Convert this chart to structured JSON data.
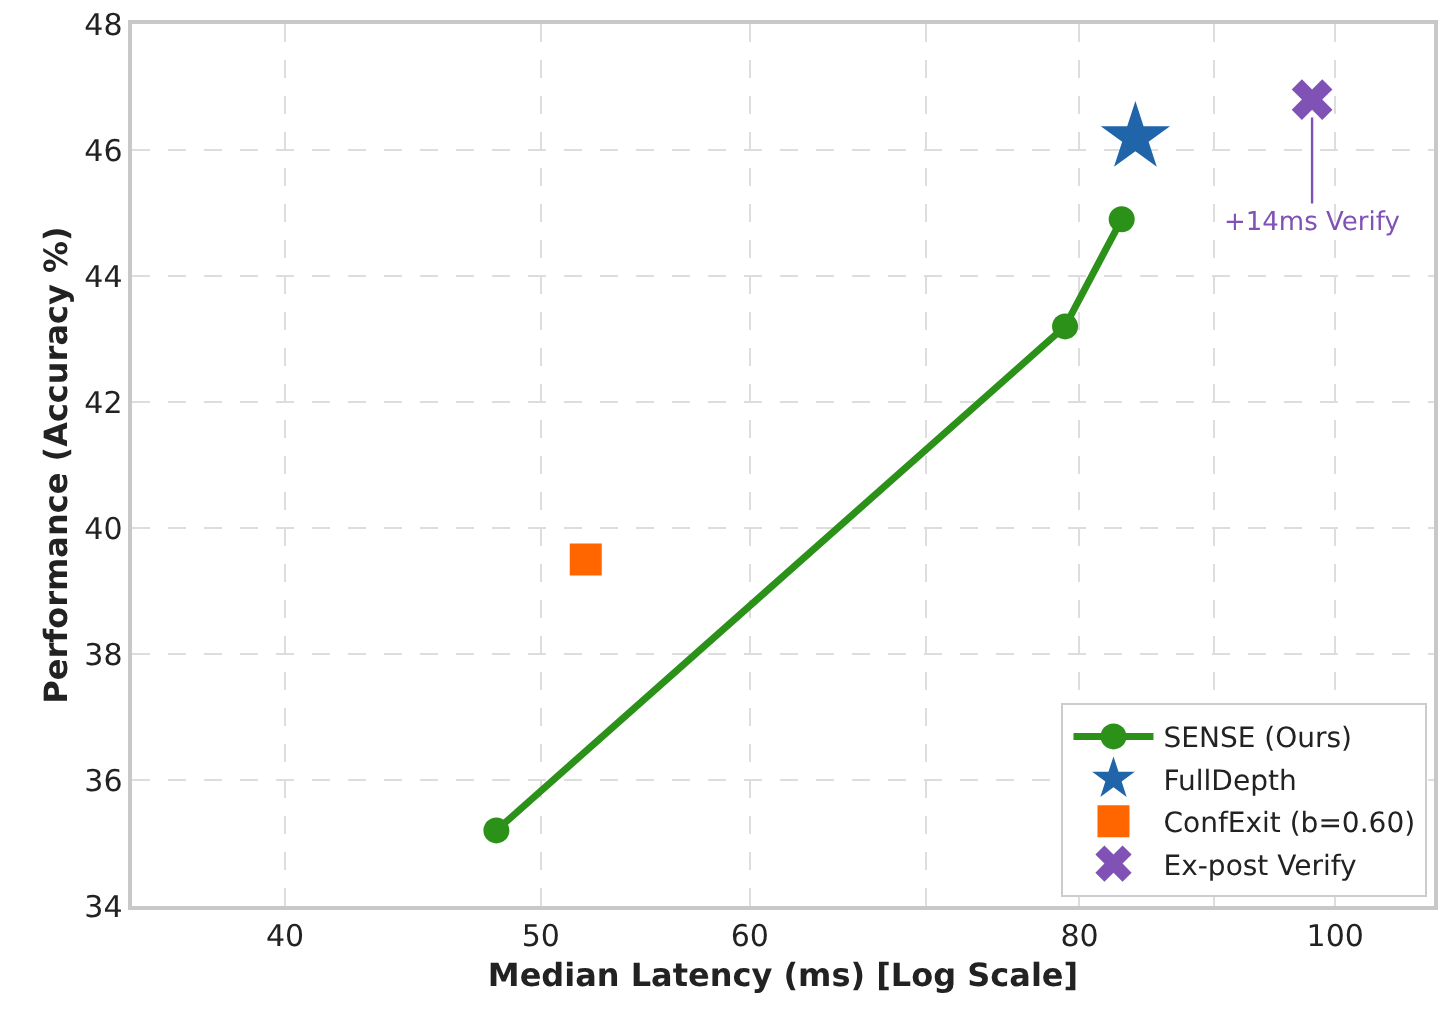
{
  "chart_data": {
    "type": "line",
    "xlabel": "Median Latency (ms) [Log Scale]",
    "ylabel": "Performance (Accuracy %)",
    "log": "x",
    "xlim": [
      35,
      109
    ],
    "xticks": [
      40,
      50,
      60,
      {
        "value": 70,
        "label": null
      },
      80,
      {
        "value": 90,
        "label": null
      },
      100
    ],
    "ylim": [
      34,
      48
    ],
    "yticks": [
      34,
      36,
      38,
      40,
      42,
      44,
      46,
      48
    ],
    "grid": true,
    "legend": "bottom right",
    "series": [
      {
        "name": "SENSE (Ours)",
        "color": "#2b9119",
        "marker": "circle",
        "line_style": "solid",
        "x": [
          48.1,
          79,
          83
        ],
        "values": [
          35.2,
          43.2,
          44.9
        ]
      },
      {
        "name": "FullDepth",
        "type": "scatter",
        "color": "#2064aa",
        "marker": "star",
        "x": [
          84
        ],
        "values": [
          46.2
        ]
      },
      {
        "name": "ConfExit (b=0.60)",
        "type": "scatter",
        "color": "#ff6600",
        "marker": "square",
        "x": [
          52
        ],
        "values": [
          39.5
        ]
      },
      {
        "name": "Ex-post Verify",
        "type": "scatter",
        "color": "#8052b5",
        "marker": "cross",
        "x": [
          98
        ],
        "values": [
          46.8
        ]
      }
    ],
    "annotations": [
      {
        "text": "+14ms Verify",
        "x": 98,
        "y": 46.8
      }
    ]
  }
}
